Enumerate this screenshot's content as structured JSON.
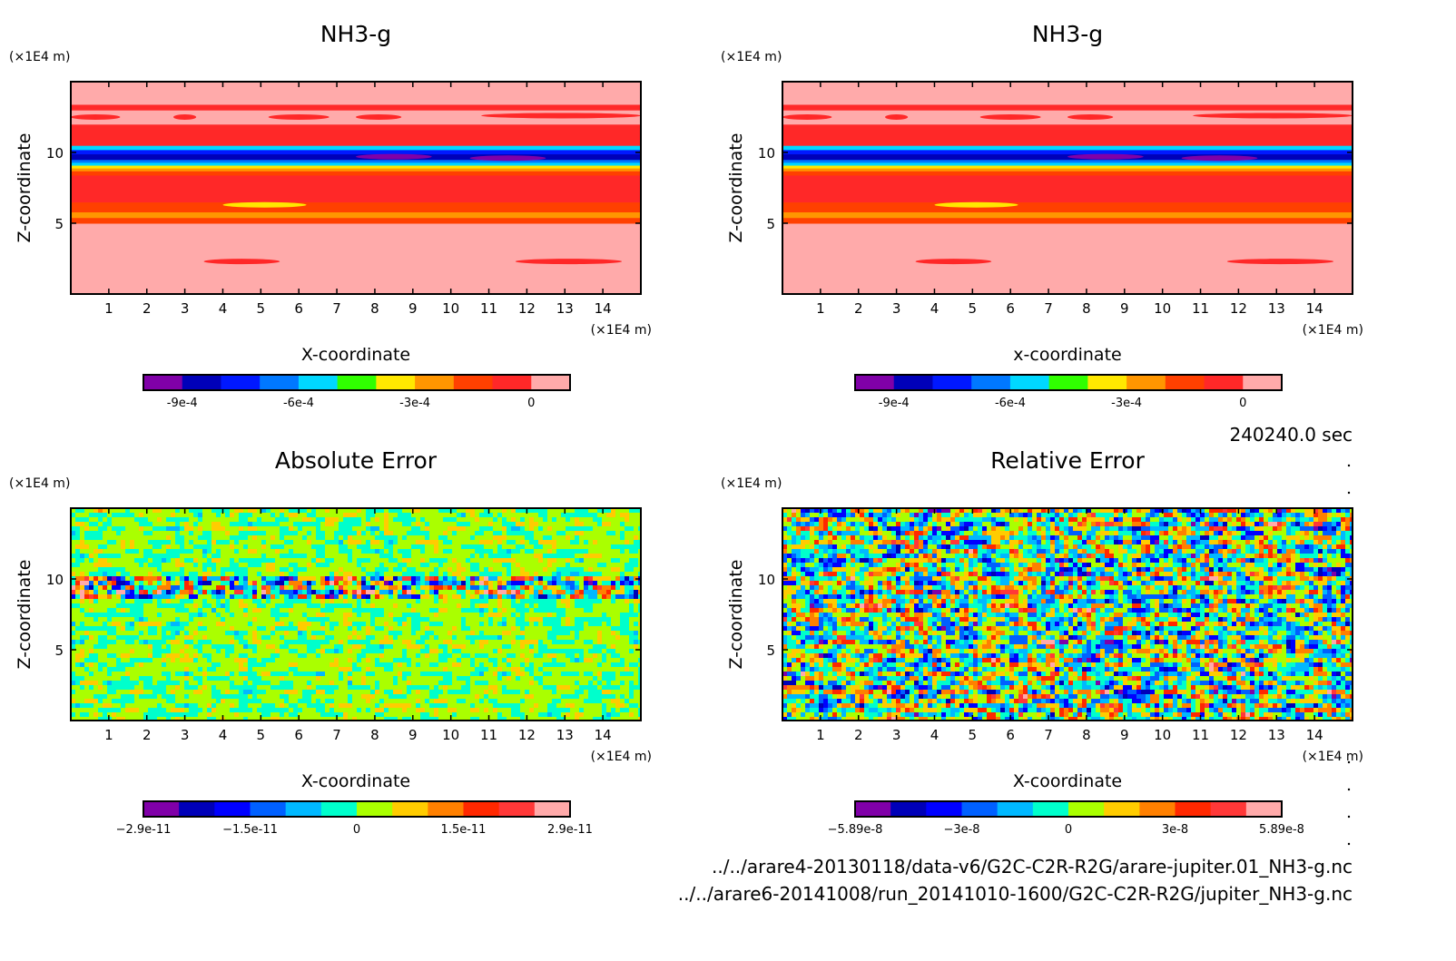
{
  "time_label": "240240.0 sec",
  "files": [
    "../../arare4-20130118/data-v6/G2C-C2R-R2G/arare-jupiter.01_NH3-g.nc",
    "../../arare6-20141008/run_20141010-1600/G2C-C2R-R2G/jupiter_NH3-g.nc"
  ],
  "palettes": {
    "field": [
      "#8000a8",
      "#0000b8",
      "#0018ff",
      "#0078ff",
      "#00d8ff",
      "#30ff00",
      "#ffe800",
      "#ff9600",
      "#ff4000",
      "#ff2828",
      "#ffaaaa"
    ],
    "error": [
      "#8000a8",
      "#0000b8",
      "#0000ff",
      "#0060ff",
      "#00b8ff",
      "#00ffcc",
      "#aaff00",
      "#ffcc00",
      "#ff8000",
      "#ff2800",
      "#ff3838",
      "#ffaaaa"
    ]
  },
  "chart_data": [
    {
      "type": "heatmap",
      "title": "NH3-g",
      "xlabel": "X-coordinate",
      "ylabel": "Z-coordinate",
      "x_unit": "(×1E4 m)",
      "y_unit": "(×1E4 m)",
      "xlim": [
        0,
        15
      ],
      "ylim": [
        0,
        15
      ],
      "xticks": [
        "1",
        "2",
        "3",
        "4",
        "5",
        "6",
        "7",
        "8",
        "9",
        "10",
        "11",
        "12",
        "13",
        "14"
      ],
      "yticks": [
        "5",
        "10"
      ],
      "palette": "field",
      "colorbar_ticks": [
        {
          "boundary": 1,
          "label": "-9e-4"
        },
        {
          "boundary": 4,
          "label": "-6e-4"
        },
        {
          "boundary": 7,
          "label": "-3e-4"
        },
        {
          "boundary": 10,
          "label": "0"
        }
      ],
      "bands": [
        [
          0,
          5,
          10
        ],
        [
          5,
          5.4,
          8
        ],
        [
          5.4,
          5.8,
          7
        ],
        [
          5.8,
          6.5,
          8
        ],
        [
          6.5,
          8.4,
          9
        ],
        [
          8.4,
          8.7,
          8
        ],
        [
          8.7,
          8.9,
          7
        ],
        [
          8.9,
          9.1,
          6
        ],
        [
          9.1,
          9.3,
          4
        ],
        [
          9.3,
          9.5,
          3
        ],
        [
          9.5,
          9.9,
          1
        ],
        [
          9.9,
          10.2,
          2
        ],
        [
          10.2,
          10.5,
          4
        ],
        [
          10.5,
          10.8,
          9
        ],
        [
          10.8,
          12,
          9
        ],
        [
          12,
          13,
          10
        ],
        [
          13,
          13.4,
          9
        ],
        [
          13.4,
          15,
          10
        ]
      ],
      "islands": [
        [
          4,
          6.2,
          6.3,
          6
        ],
        [
          3.5,
          5.5,
          2.3,
          9
        ],
        [
          11.7,
          14.5,
          2.3,
          9
        ],
        [
          0,
          1.3,
          12.5,
          9
        ],
        [
          2.7,
          3.3,
          12.5,
          9
        ],
        [
          5.2,
          6.8,
          12.5,
          9
        ],
        [
          7.5,
          8.7,
          12.5,
          9
        ],
        [
          10.8,
          15,
          12.6,
          9
        ],
        [
          7.5,
          9.5,
          9.7,
          0
        ],
        [
          10.5,
          12.5,
          9.6,
          0
        ]
      ],
      "field_kind": "smooth"
    },
    {
      "type": "heatmap",
      "title": "NH3-g",
      "xlabel": "x-coordinate",
      "ylabel": "Z-coordinate",
      "x_unit": "(×1E4 m)",
      "y_unit": "(×1E4 m)",
      "xlim": [
        0,
        15
      ],
      "ylim": [
        0,
        15
      ],
      "xticks": [
        "1",
        "2",
        "3",
        "4",
        "5",
        "6",
        "7",
        "8",
        "9",
        "10",
        "11",
        "12",
        "13",
        "14"
      ],
      "yticks": [
        "5",
        "10"
      ],
      "palette": "field",
      "colorbar_ticks": [
        {
          "boundary": 1,
          "label": "-9e-4"
        },
        {
          "boundary": 4,
          "label": "-6e-4"
        },
        {
          "boundary": 7,
          "label": "-3e-4"
        },
        {
          "boundary": 10,
          "label": "0"
        }
      ],
      "bands": [
        [
          0,
          5,
          10
        ],
        [
          5,
          5.4,
          8
        ],
        [
          5.4,
          5.8,
          7
        ],
        [
          5.8,
          6.5,
          8
        ],
        [
          6.5,
          8.4,
          9
        ],
        [
          8.4,
          8.7,
          8
        ],
        [
          8.7,
          8.9,
          7
        ],
        [
          8.9,
          9.1,
          6
        ],
        [
          9.1,
          9.3,
          4
        ],
        [
          9.3,
          9.5,
          3
        ],
        [
          9.5,
          9.9,
          1
        ],
        [
          9.9,
          10.2,
          2
        ],
        [
          10.2,
          10.5,
          4
        ],
        [
          10.5,
          10.8,
          9
        ],
        [
          10.8,
          12,
          9
        ],
        [
          12,
          13,
          10
        ],
        [
          13,
          13.4,
          9
        ],
        [
          13.4,
          15,
          10
        ]
      ],
      "islands": [
        [
          4,
          6.2,
          6.3,
          6
        ],
        [
          3.5,
          5.5,
          2.3,
          9
        ],
        [
          11.7,
          14.5,
          2.3,
          9
        ],
        [
          0,
          1.3,
          12.5,
          9
        ],
        [
          2.7,
          3.3,
          12.5,
          9
        ],
        [
          5.2,
          6.8,
          12.5,
          9
        ],
        [
          7.5,
          8.7,
          12.5,
          9
        ],
        [
          10.8,
          15,
          12.6,
          9
        ],
        [
          7.5,
          9.5,
          9.7,
          0
        ],
        [
          10.5,
          12.5,
          9.6,
          0
        ]
      ],
      "field_kind": "smooth"
    },
    {
      "type": "heatmap",
      "title": "Absolute Error",
      "xlabel": "X-coordinate",
      "ylabel": "Z-coordinate",
      "x_unit": "(×1E4 m)",
      "y_unit": "(×1E4 m)",
      "xlim": [
        0,
        15
      ],
      "ylim": [
        0,
        15
      ],
      "xticks": [
        "1",
        "2",
        "3",
        "4",
        "5",
        "6",
        "7",
        "8",
        "9",
        "10",
        "11",
        "12",
        "13",
        "14"
      ],
      "yticks": [
        "5",
        "10"
      ],
      "palette": "error",
      "colorbar_ticks": [
        {
          "boundary": 0,
          "label": "−2.9e-11"
        },
        {
          "boundary": 3,
          "label": "−1.5e-11"
        },
        {
          "boundary": 6,
          "label": "0"
        },
        {
          "boundary": 9,
          "label": "1.5e-11"
        },
        {
          "boundary": 12,
          "label": "2.9e-11"
        }
      ],
      "field_kind": "noise",
      "noise_spread": 0.09,
      "noisy_band": [
        8.7,
        10.2
      ],
      "noisy_band_spread": 0.4
    },
    {
      "type": "heatmap",
      "title": "Relative Error",
      "xlabel": "X-coordinate",
      "ylabel": "Z-coordinate",
      "x_unit": "(×1E4 m)",
      "y_unit": "(×1E4 m)",
      "xlim": [
        0,
        15
      ],
      "ylim": [
        0,
        15
      ],
      "xticks": [
        "1",
        "2",
        "3",
        "4",
        "5",
        "6",
        "7",
        "8",
        "9",
        "10",
        "11",
        "12",
        "13",
        "14"
      ],
      "yticks": [
        "5",
        "10"
      ],
      "palette": "error",
      "colorbar_ticks": [
        {
          "boundary": 0,
          "label": "−5.89e-8"
        },
        {
          "boundary": 3,
          "label": "−3e-8"
        },
        {
          "boundary": 6,
          "label": "0"
        },
        {
          "boundary": 9,
          "label": "3e-8"
        },
        {
          "boundary": 12,
          "label": "5.89e-8"
        }
      ],
      "field_kind": "noise",
      "noise_spread": 0.33
    }
  ]
}
